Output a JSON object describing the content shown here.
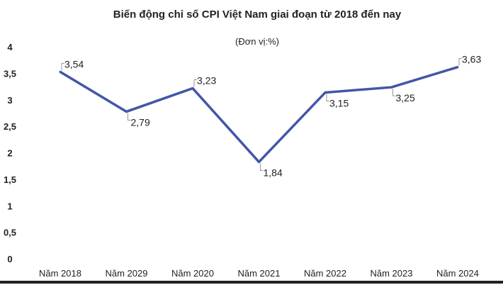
{
  "chart_data": {
    "type": "line",
    "title": "Biến động chỉ số CPI Việt Nam giai đoạn từ 2018 đến nay",
    "subtitle": "(Đơn vị:%)",
    "categories": [
      "Năm 2018",
      "Năm 2029",
      "Năm 2020",
      "Năm 2021",
      "Năm 2022",
      "Năm 2023",
      "Năm 2024"
    ],
    "series": [
      {
        "values": [
          3.54,
          2.79,
          3.23,
          1.84,
          3.15,
          3.25,
          3.63
        ],
        "data_labels": [
          "3,54",
          "2,79",
          "3,23",
          "1,84",
          "3,15",
          "3,25",
          "3,63"
        ]
      }
    ],
    "y_ticks": [
      "0",
      "0,5",
      "1",
      "1,5",
      "2",
      "2,5",
      "3",
      "3,5",
      "4"
    ],
    "ylim": [
      0,
      4
    ],
    "grid": false,
    "line_color": "#4256a8"
  }
}
